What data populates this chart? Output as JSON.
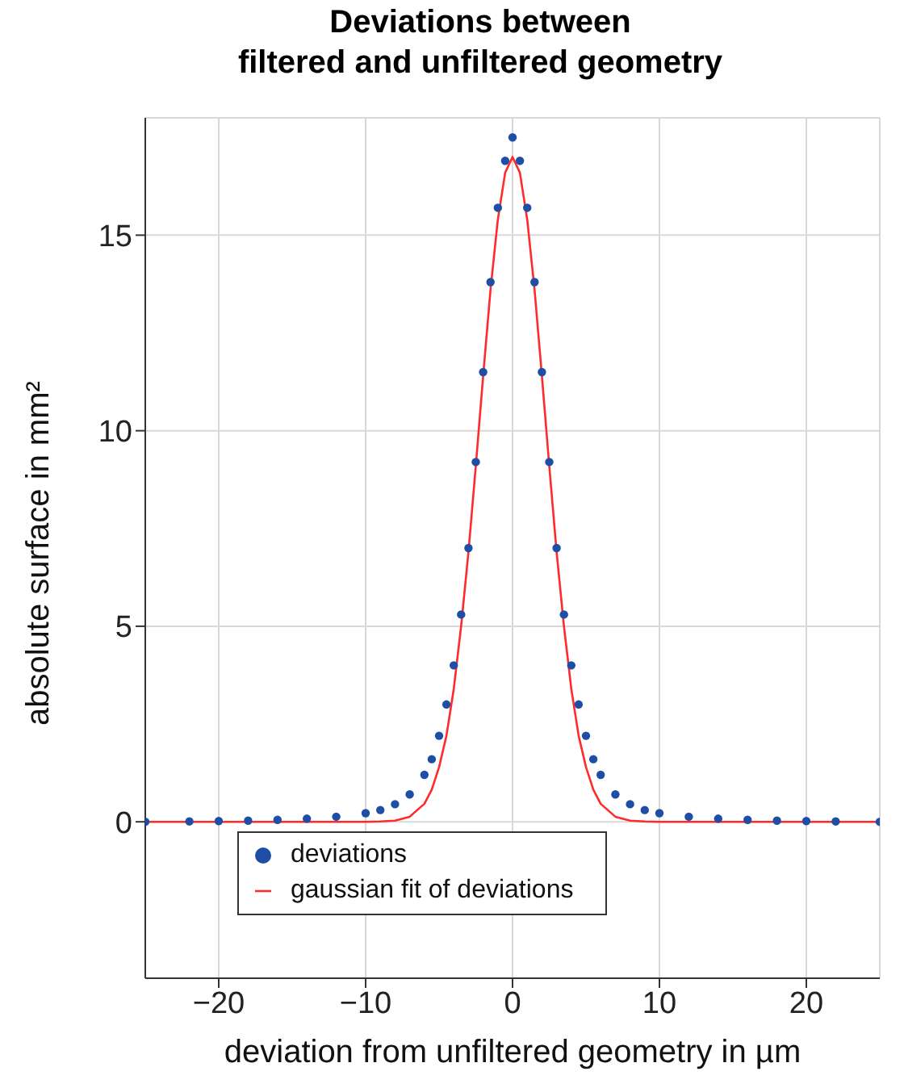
{
  "chart_data": {
    "type": "scatter",
    "title": "Deviations between\nfiltered and unfiltered geometry",
    "xlabel": "deviation from unfiltered geometry in µm",
    "ylabel": "absolute surface in mm²",
    "xlim": [
      -25,
      25
    ],
    "xticks": [
      -20,
      -10,
      0,
      10,
      20
    ],
    "ylim": [
      -4,
      18
    ],
    "yticks": [
      0,
      5,
      10,
      15
    ],
    "grid": true,
    "legend": "bottom",
    "marker": "circle",
    "series": [
      {
        "name": "deviations",
        "type": "scatter",
        "color": "#1f4ea6",
        "x": [
          -25,
          -22,
          -20,
          -18,
          -16,
          -14,
          -12,
          -10,
          -9,
          -8,
          -7,
          -6,
          -5.5,
          -5,
          -4.5,
          -4,
          -3.5,
          -3,
          -2.5,
          -2,
          -1.5,
          -1,
          -0.5,
          0,
          0.5,
          1,
          1.5,
          2,
          2.5,
          3,
          3.5,
          4,
          4.5,
          5,
          5.5,
          6,
          7,
          8,
          9,
          10,
          12,
          14,
          16,
          18,
          20,
          22,
          25
        ],
        "values": [
          0,
          0.01,
          0.02,
          0.03,
          0.05,
          0.08,
          0.13,
          0.22,
          0.3,
          0.45,
          0.7,
          1.2,
          1.6,
          2.2,
          3.0,
          4.0,
          5.3,
          7.0,
          9.2,
          11.5,
          13.8,
          15.7,
          16.9,
          17.5,
          16.9,
          15.7,
          13.8,
          11.5,
          9.2,
          7.0,
          5.3,
          4.0,
          3.0,
          2.2,
          1.6,
          1.2,
          0.7,
          0.45,
          0.3,
          0.22,
          0.13,
          0.08,
          0.05,
          0.03,
          0.02,
          0.01,
          0
        ]
      },
      {
        "name": "gaussian fit of deviations",
        "type": "line",
        "color": "#ff2a2a",
        "marker": "none",
        "x": [
          -25,
          -10,
          -9,
          -8,
          -7,
          -6,
          -5.5,
          -5,
          -4.5,
          -4,
          -3.5,
          -3,
          -2.5,
          -2,
          -1.5,
          -1,
          -0.5,
          0,
          0.5,
          1,
          1.5,
          2,
          2.5,
          3,
          3.5,
          4,
          4.5,
          5,
          5.5,
          6,
          7,
          8,
          9,
          10,
          25
        ],
        "values": [
          0,
          0,
          0.01,
          0.03,
          0.13,
          0.46,
          0.82,
          1.4,
          2.2,
          3.4,
          5.0,
          6.9,
          9.1,
          11.4,
          13.6,
          15.4,
          16.6,
          17,
          16.6,
          15.4,
          13.6,
          11.4,
          9.1,
          6.9,
          5.0,
          3.4,
          2.2,
          1.4,
          0.82,
          0.46,
          0.13,
          0.03,
          0.01,
          0,
          0
        ]
      }
    ]
  }
}
